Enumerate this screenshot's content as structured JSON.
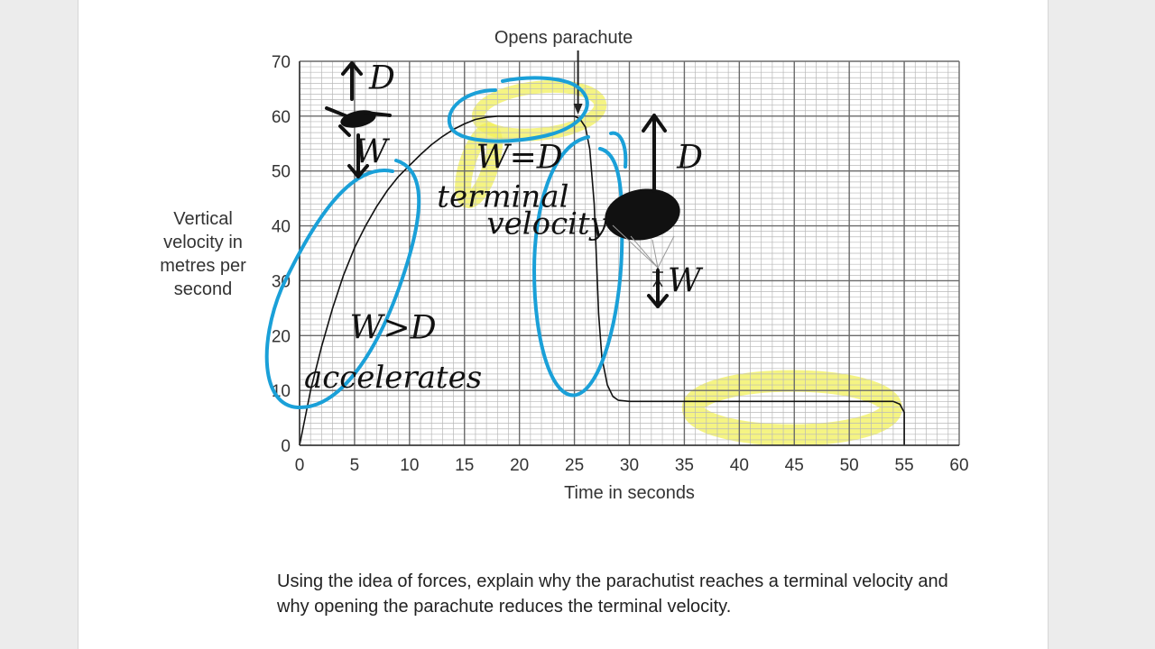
{
  "chart_data": {
    "type": "line",
    "xlabel": "Time in seconds",
    "ylabel_lines": [
      "Vertical",
      "velocity in",
      "metres per",
      "second"
    ],
    "xlim": [
      0,
      60
    ],
    "ylim": [
      0,
      70
    ],
    "x_ticks": [
      0,
      5,
      10,
      15,
      20,
      25,
      30,
      35,
      40,
      45,
      50,
      55,
      60
    ],
    "y_ticks": [
      0,
      10,
      20,
      30,
      40,
      50,
      60,
      70
    ],
    "grid": true,
    "minor_grid_step": 1,
    "series": [
      {
        "x": [
          0,
          0.5,
          1,
          2,
          3,
          4,
          5,
          6,
          7,
          8,
          9,
          10,
          11,
          12,
          13,
          14,
          15,
          16,
          17,
          18,
          20,
          22,
          24,
          25,
          25.5,
          26,
          26.4,
          26.8,
          27,
          27.2,
          27.5,
          28,
          28.5,
          29,
          30,
          35,
          40,
          45,
          50,
          54,
          54.6,
          55,
          55
        ],
        "y": [
          0,
          5,
          10,
          18,
          25,
          31,
          36,
          40,
          43.5,
          46.5,
          49,
          51,
          53,
          54.8,
          56.3,
          57.6,
          58.6,
          59.4,
          59.8,
          60,
          60,
          60,
          60,
          60,
          59.5,
          58,
          54,
          44,
          34,
          24,
          16,
          11,
          8.9,
          8.2,
          8,
          8,
          8,
          8,
          8,
          8,
          7.5,
          6,
          0
        ]
      }
    ],
    "annotations": [
      {
        "text": "Opens parachute",
        "x": 25
      }
    ],
    "handwritten_notes": [
      {
        "text": "W=D",
        "x": 20,
        "y": 50.5,
        "color": "#111111"
      },
      {
        "text": "terminal",
        "x": 18.5,
        "y": 43.5,
        "color": "#111111"
      },
      {
        "text": "velocity",
        "x": 22.5,
        "y": 38.5,
        "color": "#111111"
      },
      {
        "text": "W>D",
        "x": 8.5,
        "y": 19.5,
        "color": "#111111"
      },
      {
        "text": "accelerates",
        "x": 8.5,
        "y": 10.5,
        "color": "#111111"
      },
      {
        "text": "D",
        "x": 35.5,
        "y": 50.5,
        "color": "#111111"
      },
      {
        "text": "D",
        "x": 7.5,
        "y": 65,
        "color": "#111111"
      },
      {
        "text": "W",
        "x": 6.5,
        "y": 51.5,
        "color": "#111111"
      },
      {
        "text": "W",
        "x": 35,
        "y": 28,
        "color": "#111111"
      }
    ]
  },
  "question": {
    "line1": "Using the idea of forces, explain why the parachutist reaches a terminal velocity and",
    "line2": "why opening the parachute reduces the terminal velocity."
  },
  "colors": {
    "major_grid": "#6a6a6a",
    "minor_grid": "#b8b8b8",
    "curve": "#111111",
    "highlight_yellow": "#f2f05a",
    "annotation_blue": "#1aa0d8"
  }
}
